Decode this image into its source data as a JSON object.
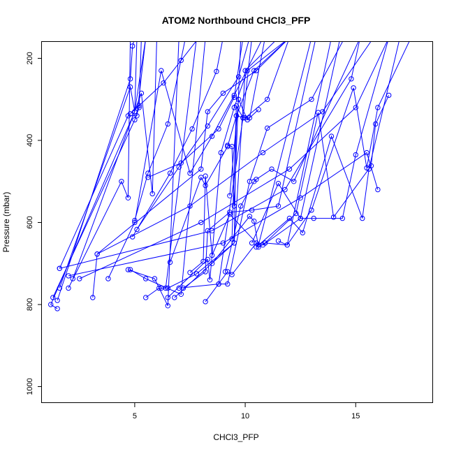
{
  "chart_data": {
    "type": "scatter",
    "title": "ATOM2 Northbound CHCl3_PFP",
    "xlabel": "CHCl3_PFP",
    "ylabel": "Pressure (mbar)",
    "xlim": [
      0.8,
      18.5
    ],
    "ylim": [
      1040,
      160
    ],
    "y_inverted": true,
    "x_ticks": [
      5,
      10,
      15
    ],
    "y_ticks": [
      200,
      400,
      600,
      800,
      1000
    ],
    "grid": false,
    "legend": "none",
    "color": "#0000ff",
    "series": [
      {
        "x": [
          1.5,
          1.2,
          5.0,
          5.5
        ],
        "y": [
          810,
          800,
          330,
          150
        ]
      },
      {
        "x": [
          1.3,
          5.0,
          5.2,
          5.3
        ],
        "y": [
          783,
          350,
          320,
          150
        ]
      },
      {
        "x": [
          1.6,
          4.7,
          5.1,
          5.5
        ],
        "y": [
          712,
          340,
          340,
          150
        ]
      },
      {
        "x": [
          1.5,
          4.8,
          4.9,
          5.0
        ],
        "y": [
          790,
          250,
          170,
          150
        ]
      },
      {
        "x": [
          1.6,
          4.8,
          5.0,
          5.1
        ],
        "y": [
          760,
          270,
          330,
          150
        ]
      },
      {
        "x": [
          2.0,
          4.4,
          4.7,
          4.8
        ],
        "y": [
          760,
          500,
          540,
          150
        ]
      },
      {
        "x": [
          2.2,
          5.3,
          5.8,
          6.0
        ],
        "y": [
          737,
          285,
          530,
          150
        ]
      },
      {
        "x": [
          3.1,
          3.3,
          8.0,
          8.3,
          9.0,
          10.5,
          12.0
        ],
        "y": [
          783,
          677,
          470,
          330,
          285,
          230,
          150
        ]
      },
      {
        "x": [
          3.8,
          5.0,
          6.2,
          7.5,
          8.5,
          9.5,
          10.8
        ],
        "y": [
          737,
          600,
          230,
          480,
          390,
          290,
          150
        ]
      },
      {
        "x": [
          4.8,
          5.5,
          7.1,
          8.2
        ],
        "y": [
          715,
          737,
          775,
          150
        ]
      },
      {
        "x": [
          4.7,
          5.9,
          6.5,
          7.0
        ],
        "y": [
          715,
          737,
          803,
          150
        ]
      },
      {
        "x": [
          5.5,
          6.1,
          6.2,
          6.4,
          7.8,
          9.0
        ],
        "y": [
          783,
          760,
          760,
          760,
          150,
          150
        ]
      },
      {
        "x": [
          6.5,
          7.8,
          9.5,
          10.0,
          11.5,
          13.5
        ],
        "y": [
          760,
          725,
          650,
          230,
          150,
          150
        ]
      },
      {
        "x": [
          6.5,
          8.3,
          8.4,
          8.9,
          9.5,
          10.1,
          12.0
        ],
        "y": [
          783,
          690,
          740,
          430,
          320,
          230,
          150
        ]
      },
      {
        "x": [
          6.6,
          8.0,
          8.2,
          9.2,
          9.6,
          10.4,
          12.0
        ],
        "y": [
          697,
          490,
          510,
          415,
          340,
          230,
          150
        ]
      },
      {
        "x": [
          6.8,
          9.5,
          9.6,
          10.0,
          11.0,
          12.0,
          14.0
        ],
        "y": [
          783,
          650,
          340,
          345,
          300,
          150,
          150
        ]
      },
      {
        "x": [
          7.0,
          8.8,
          9.2,
          10.2,
          11.0,
          13.0,
          14.5
        ],
        "y": [
          760,
          750,
          750,
          500,
          370,
          300,
          150
        ]
      },
      {
        "x": [
          7.2,
          8.2,
          8.3,
          9.3,
          10.3,
          11.5,
          13.2
        ],
        "y": [
          760,
          720,
          620,
          575,
          570,
          560,
          150
        ]
      },
      {
        "x": [
          7.5,
          8.1,
          8.2,
          8.5,
          9.3,
          10.6,
          13.0
        ],
        "y": [
          722,
          695,
          487,
          680,
          580,
          655,
          150
        ]
      },
      {
        "x": [
          8.2,
          9.2,
          9.4,
          10.5,
          10.8,
          12.5,
          14.3
        ],
        "y": [
          793,
          720,
          727,
          650,
          655,
          590,
          150
        ]
      },
      {
        "x": [
          8.5,
          10.2,
          10.4,
          10.6,
          10.9,
          11.9,
          13.9
        ],
        "y": [
          700,
          585,
          597,
          660,
          650,
          655,
          150
        ]
      },
      {
        "x": [
          9.1,
          9.8,
          10.4,
          10.5,
          11.2,
          12.2,
          15.2
        ],
        "y": [
          720,
          560,
          500,
          495,
          470,
          500,
          150
        ]
      },
      {
        "x": [
          10.3,
          11.5,
          12.5,
          13.1,
          14.4,
          15.0,
          16.5
        ],
        "y": [
          650,
          505,
          590,
          590,
          590,
          435,
          150
        ]
      },
      {
        "x": [
          10.5,
          12.0,
          12.6,
          13.9,
          15.3,
          15.6,
          17.0
        ],
        "y": [
          660,
          590,
          625,
          390,
          590,
          470,
          150
        ]
      },
      {
        "x": [
          10.9,
          12.3,
          13.3,
          14.0,
          15.7,
          15.9,
          16.5
        ],
        "y": [
          650,
          578,
          332,
          587,
          462,
          360,
          290
        ]
      },
      {
        "x": [
          11.5,
          11.9,
          13.0,
          14.9,
          15.5,
          16.0,
          17.5
        ],
        "y": [
          645,
          655,
          570,
          272,
          467,
          320,
          150
        ]
      },
      {
        "x": [
          2.0,
          9.0,
          12.5,
          15.5,
          16.0
        ],
        "y": [
          730,
          650,
          540,
          430,
          520
        ]
      },
      {
        "x": [
          1.6,
          8.5,
          11.8,
          14.8,
          15.2
        ],
        "y": [
          712,
          620,
          520,
          250,
          150
        ]
      },
      {
        "x": [
          2.5,
          8.0,
          12.0,
          15.0,
          16.5
        ],
        "y": [
          737,
          600,
          470,
          320,
          150
        ]
      },
      {
        "x": [
          3.3,
          7.5,
          10.8,
          13.5,
          15.8
        ],
        "y": [
          677,
          560,
          430,
          330,
          150
        ]
      },
      {
        "x": [
          5.1,
          7.0,
          8.3,
          9.7,
          10.2
        ],
        "y": [
          617,
          465,
          365,
          245,
          150
        ]
      },
      {
        "x": [
          4.9,
          6.6,
          7.6,
          8.7,
          9.0
        ],
        "y": [
          635,
          480,
          372,
          232,
          150
        ]
      },
      {
        "x": [
          5.6,
          7.1,
          8.8,
          9.5,
          9.9
        ],
        "y": [
          490,
          455,
          372,
          295,
          150
        ]
      },
      {
        "x": [
          4.8,
          5.2,
          6.3,
          7.1,
          7.9
        ],
        "y": [
          335,
          315,
          260,
          205,
          150
        ]
      },
      {
        "x": [
          5.0,
          5.6,
          6.5,
          7.3
        ],
        "y": [
          595,
          480,
          360,
          150
        ]
      },
      {
        "x": [
          9.2,
          9.4,
          9.5,
          9.8
        ],
        "y": [
          412,
          415,
          560,
          150
        ]
      },
      {
        "x": [
          9.4,
          9.6,
          9.9,
          10.3
        ],
        "y": [
          640,
          316,
          345,
          150
        ]
      },
      {
        "x": [
          9.3,
          9.7,
          10.1,
          10.6
        ],
        "y": [
          535,
          300,
          350,
          325
        ]
      },
      {
        "x": [
          8.8,
          9.9,
          10.2,
          10.9
        ],
        "y": [
          750,
          345,
          345,
          150
        ]
      }
    ]
  }
}
